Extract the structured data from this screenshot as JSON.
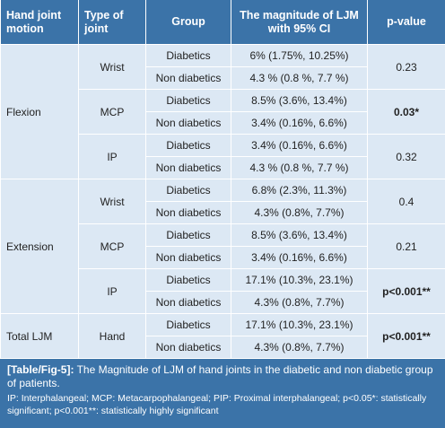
{
  "table": {
    "header": [
      "Hand joint motion",
      "Type of joint",
      "Group",
      "The magnitude of LJM with 95% CI",
      "p-value"
    ],
    "sections": [
      {
        "motion": "Flexion",
        "joints": [
          {
            "type": "Wrist",
            "pvalue": "0.23",
            "emphasis": false,
            "groups": [
              {
                "group": "Diabetics",
                "magnitude": "6% (1.75%, 10.25%)"
              },
              {
                "group": "Non diabetics",
                "magnitude": "4.3 % (0.8 %, 7.7 %)"
              }
            ]
          },
          {
            "type": "MCP",
            "pvalue": "0.03*",
            "emphasis": true,
            "groups": [
              {
                "group": "Diabetics",
                "magnitude": "8.5% (3.6%, 13.4%)"
              },
              {
                "group": "Non diabetics",
                "magnitude": "3.4% (0.16%, 6.6%)"
              }
            ]
          },
          {
            "type": "IP",
            "pvalue": "0.32",
            "emphasis": false,
            "groups": [
              {
                "group": "Diabetics",
                "magnitude": "3.4% (0.16%, 6.6%)"
              },
              {
                "group": "Non diabetics",
                "magnitude": "4.3 % (0.8 %, 7.7 %)"
              }
            ]
          }
        ]
      },
      {
        "motion": "Extension",
        "joints": [
          {
            "type": "Wrist",
            "pvalue": "0.4",
            "emphasis": false,
            "groups": [
              {
                "group": "Diabetics",
                "magnitude": "6.8% (2.3%, 11.3%)"
              },
              {
                "group": "Non diabetics",
                "magnitude": "4.3% (0.8%, 7.7%)"
              }
            ]
          },
          {
            "type": "MCP",
            "pvalue": "0.21",
            "emphasis": false,
            "groups": [
              {
                "group": "Diabetics",
                "magnitude": "8.5% (3.6%, 13.4%)"
              },
              {
                "group": "Non diabetics",
                "magnitude": "3.4% (0.16%, 6.6%)"
              }
            ]
          },
          {
            "type": "IP",
            "pvalue": "p<0.001**",
            "emphasis": true,
            "groups": [
              {
                "group": "Diabetics",
                "magnitude": "17.1% (10.3%, 23.1%)"
              },
              {
                "group": "Non diabetics",
                "magnitude": "4.3% (0.8%, 7.7%)"
              }
            ]
          }
        ]
      },
      {
        "motion": "Total LJM",
        "joints": [
          {
            "type": "Hand",
            "pvalue": "p<0.001**",
            "emphasis": true,
            "groups": [
              {
                "group": "Diabetics",
                "magnitude": "17.1% (10.3%, 23.1%)"
              },
              {
                "group": "Non diabetics",
                "magnitude": "4.3% (0.8%, 7.7%)"
              }
            ]
          }
        ]
      }
    ]
  },
  "caption": {
    "label": "[Table/Fig-5]:",
    "text": "The Magnitude of LJM of hand joints in the diabetic and non diabetic group of patients.",
    "footnote": "IP: Interphalangeal; MCP: Metacarpophalangeal; PIP: Proximal interphalangeal; p<0.05*: statistically significant; p<0.001**: statistically highly significant"
  }
}
